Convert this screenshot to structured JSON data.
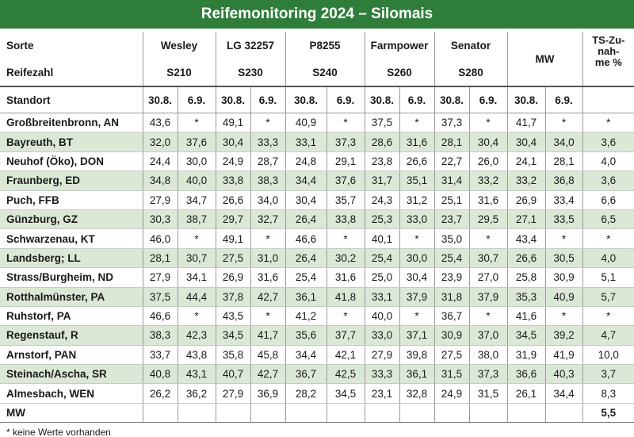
{
  "title": "Reifemonitoring 2024 – Silomais",
  "header": {
    "sorte_label": "Sorte",
    "reifezahl_label": "Reifezahl",
    "standort_label": "Standort",
    "varieties": [
      "Wesley",
      "LG 32257",
      "P8255",
      "Farmpower",
      "Senator"
    ],
    "reifezahlen": [
      "S210",
      "S230",
      "S240",
      "S260",
      "S280"
    ],
    "mw_label": "MW",
    "ts_label": [
      "TS-Zu-",
      "nah-",
      "me %"
    ],
    "dates": [
      "30.8.",
      "6.9.",
      "30.8.",
      "6.9.",
      "30.8.",
      "6.9.",
      "30.8.",
      "6.9.",
      "30.8.",
      "6.9.",
      "30.8.",
      "6.9."
    ]
  },
  "table": {
    "rows": [
      [
        "Großbreitenbronn, AN",
        "43,6",
        "*",
        "49,1",
        "*",
        "40,9",
        "*",
        "37,5",
        "*",
        "37,3",
        "*",
        "41,7",
        "*",
        "*"
      ],
      [
        "Bayreuth, BT",
        "32,0",
        "37,6",
        "30,4",
        "33,3",
        "33,1",
        "37,3",
        "28,6",
        "31,6",
        "28,1",
        "30,4",
        "30,4",
        "34,0",
        "3,6"
      ],
      [
        "Neuhof (Öko), DON",
        "24,4",
        "30,0",
        "24,9",
        "28,7",
        "24,8",
        "29,1",
        "23,8",
        "26,6",
        "22,7",
        "26,0",
        "24,1",
        "28,1",
        "4,0"
      ],
      [
        "Fraunberg, ED",
        "34,8",
        "40,0",
        "33,8",
        "38,3",
        "34,4",
        "37,6",
        "31,7",
        "35,1",
        "31,4",
        "33,2",
        "33,2",
        "36,8",
        "3,6"
      ],
      [
        "Puch, FFB",
        "27,9",
        "34,7",
        "26,6",
        "34,0",
        "30,4",
        "35,7",
        "24,3",
        "31,2",
        "25,1",
        "31,6",
        "26,9",
        "33,4",
        "6,6"
      ],
      [
        "Günzburg, GZ",
        "30,3",
        "38,7",
        "29,7",
        "32,7",
        "26,4",
        "33,8",
        "25,3",
        "33,0",
        "23,7",
        "29,5",
        "27,1",
        "33,5",
        "6,5"
      ],
      [
        "Schwarzenau, KT",
        "46,0",
        "*",
        "49,1",
        "*",
        "46,6",
        "*",
        "40,1",
        "*",
        "35,0",
        "*",
        "43,4",
        "*",
        "*"
      ],
      [
        "Landsberg; LL",
        "28,1",
        "30,7",
        "27,5",
        "31,0",
        "26,4",
        "30,2",
        "25,4",
        "30,0",
        "25,4",
        "30,7",
        "26,6",
        "30,5",
        "4,0"
      ],
      [
        "Strass/Burgheim, ND",
        "27,9",
        "34,1",
        "26,9",
        "31,6",
        "25,4",
        "31,6",
        "25,0",
        "30,4",
        "23,9",
        "27,0",
        "25,8",
        "30,9",
        "5,1"
      ],
      [
        "Rotthalmünster, PA",
        "37,5",
        "44,4",
        "37,8",
        "42,7",
        "36,1",
        "41,8",
        "33,1",
        "37,9",
        "31,8",
        "37,9",
        "35,3",
        "40,9",
        "5,7"
      ],
      [
        "Ruhstorf, PA",
        "46,6",
        "*",
        "43,5",
        "*",
        "41,2",
        "*",
        "40,0",
        "*",
        "36,7",
        "*",
        "41,6",
        "*",
        "*"
      ],
      [
        "Regenstauf, R",
        "38,3",
        "42,3",
        "34,5",
        "41,7",
        "35,6",
        "37,7",
        "33,0",
        "37,1",
        "30,9",
        "37,0",
        "34,5",
        "39,2",
        "4,7"
      ],
      [
        "Arnstorf, PAN",
        "33,7",
        "43,8",
        "35,8",
        "45,8",
        "34,4",
        "42,1",
        "27,9",
        "39,8",
        "27,5",
        "38,0",
        "31,9",
        "41,9",
        "10,0"
      ],
      [
        "Steinach/Ascha, SR",
        "40,8",
        "43,1",
        "40,7",
        "42,7",
        "36,7",
        "42,5",
        "33,3",
        "36,1",
        "31,5",
        "37,3",
        "36,6",
        "40,3",
        "3,7"
      ],
      [
        "Almesbach, WEN",
        "26,2",
        "36,2",
        "27,9",
        "36,9",
        "28,2",
        "34,5",
        "23,1",
        "32,8",
        "24,9",
        "31,5",
        "26,1",
        "34,4",
        "8,3"
      ]
    ],
    "mw_row": {
      "label": "MW",
      "ts": "5,5"
    }
  },
  "footnote": "* keine Werte vorhanden"
}
